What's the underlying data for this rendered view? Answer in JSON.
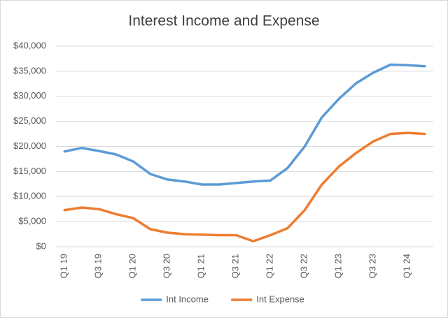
{
  "chart_data": {
    "type": "line",
    "title": "Interest Income and Expense",
    "categories": [
      "Q1 19",
      null,
      "Q3 19",
      null,
      "Q1 20",
      null,
      "Q3 20",
      null,
      "Q1 21",
      null,
      "Q3 21",
      null,
      "Q1 22",
      null,
      "Q3 22",
      null,
      "Q1 23",
      null,
      "Q3 23",
      null,
      "Q1 24",
      null
    ],
    "series": [
      {
        "name": "Int Income",
        "color": "#5b9bd5",
        "values": [
          19000,
          19700,
          19100,
          18400,
          17000,
          14500,
          13400,
          13000,
          12400,
          12400,
          12700,
          13000,
          13200,
          15700,
          20000,
          25800,
          29500,
          32600,
          34700,
          36300,
          36200,
          36000
        ]
      },
      {
        "name": "Int Expense",
        "color": "#ed7d31",
        "values": [
          7300,
          7800,
          7500,
          6500,
          5700,
          3500,
          2800,
          2500,
          2400,
          2300,
          2300,
          1100,
          2300,
          3700,
          7300,
          12400,
          16000,
          18700,
          21000,
          22500,
          22700,
          22500
        ]
      }
    ],
    "ylim": [
      0,
      40000
    ],
    "yticks": [
      {
        "value": 0,
        "label": "$0"
      },
      {
        "value": 5000,
        "label": "$5,000"
      },
      {
        "value": 10000,
        "label": "$10,000"
      },
      {
        "value": 15000,
        "label": "$15,000"
      },
      {
        "value": 20000,
        "label": "$20,000"
      },
      {
        "value": 25000,
        "label": "$25,000"
      },
      {
        "value": 30000,
        "label": "$30,000"
      },
      {
        "value": 35000,
        "label": "$35,000"
      },
      {
        "value": 40000,
        "label": "$40,000"
      }
    ],
    "grid": true,
    "legend": "bottom"
  }
}
